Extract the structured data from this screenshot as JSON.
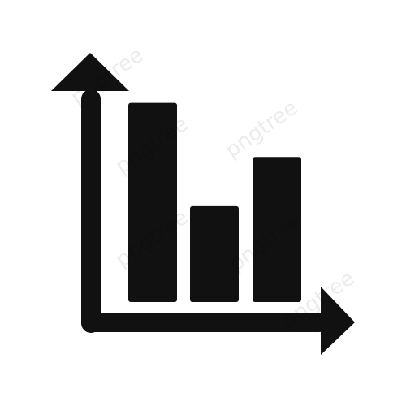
{
  "icon": {
    "name": "bar-chart-growth-icon",
    "color": "#111111"
  },
  "bars": [
    {
      "id": "bar-1",
      "level": 0.81
    },
    {
      "id": "bar-2",
      "level": 0.39
    },
    {
      "id": "bar-3",
      "level": 0.59
    }
  ],
  "watermark": {
    "text": "pngtree",
    "color": "#000000"
  }
}
